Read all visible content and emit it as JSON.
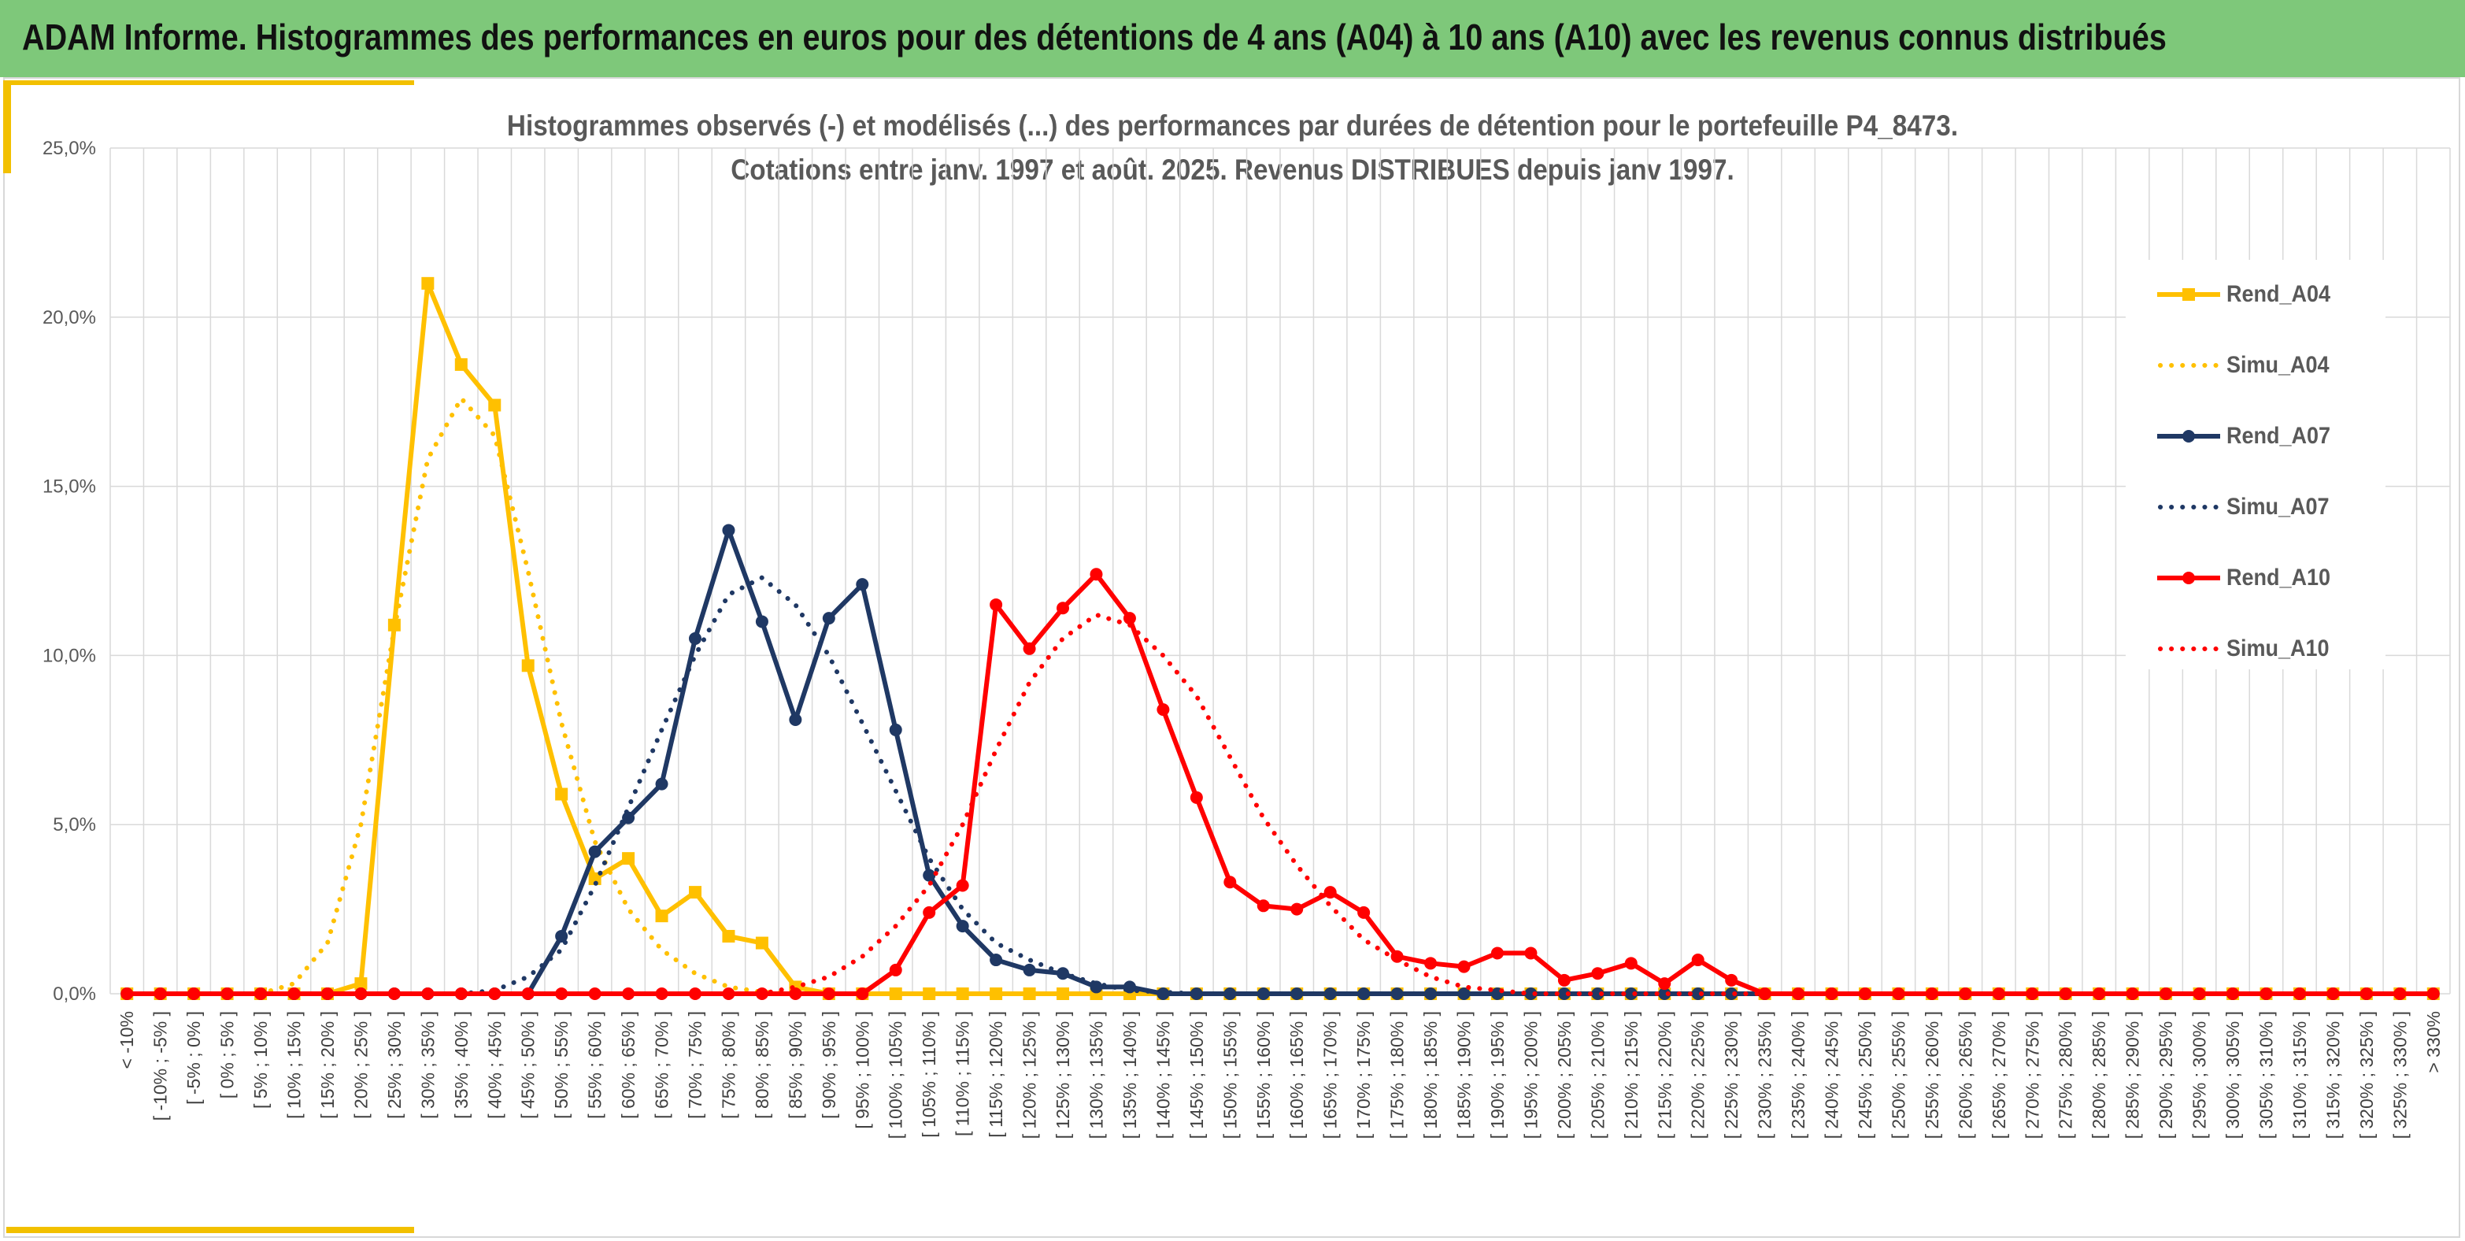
{
  "header": {
    "title": "ADAM Informe. Histogrammes des performances en euros pour des détentions de 4 ans (A04) à 10 ans (A10) avec les revenus connus distribués"
  },
  "colors": {
    "header_bg": "#7ec87a",
    "accent": "#f2c000",
    "A04": "#ffc000",
    "A07": "#1f3864",
    "A10": "#ff0000"
  },
  "chart_data": {
    "type": "line",
    "title_lines": [
      "Histogrammes observés (-) et modélisés (...) des performances par durées de détention pour le portefeuille P4_8473.",
      "Cotations entre janv. 1997 et août. 2025. Revenus DISTRIBUES depuis janv 1997."
    ],
    "ylim": [
      0,
      25
    ],
    "y_ticks": [
      "0,0%",
      "5,0%",
      "10,0%",
      "15,0%",
      "20,0%",
      "25,0%"
    ],
    "grid": true,
    "legend_position": "right",
    "categories": [
      "< -10%",
      "[ -10% ; -5% ]",
      "[ -5% ; 0% ]",
      "[ 0% ; 5% ]",
      "[ 5% ; 10% ]",
      "[ 10% ; 15% ]",
      "[ 15% ; 20% ]",
      "[ 20% ; 25% ]",
      "[ 25% ; 30% ]",
      "[ 30% ; 35% ]",
      "[ 35% ; 40% ]",
      "[ 40% ; 45% ]",
      "[ 45% ; 50% ]",
      "[ 50% ; 55% ]",
      "[ 55% ; 60% ]",
      "[ 60% ; 65% ]",
      "[ 65% ; 70% ]",
      "[ 70% ; 75% ]",
      "[ 75% ; 80% ]",
      "[ 80% ; 85% ]",
      "[ 85% ; 90% ]",
      "[ 90% ; 95% ]",
      "[ 95% ; 100% ]",
      "[ 100% ; 105% ]",
      "[ 105% ; 110% ]",
      "[ 110% ; 115% ]",
      "[ 115% ; 120% ]",
      "[ 120% ; 125% ]",
      "[ 125% ; 130% ]",
      "[ 130% ; 135% ]",
      "[ 135% ; 140% ]",
      "[ 140% ; 145% ]",
      "[ 145% ; 150% ]",
      "[ 150% ; 155% ]",
      "[ 155% ; 160% ]",
      "[ 160% ; 165% ]",
      "[ 165% ; 170% ]",
      "[ 170% ; 175% ]",
      "[ 175% ; 180% ]",
      "[ 180% ; 185% ]",
      "[ 185% ; 190% ]",
      "[ 190% ; 195% ]",
      "[ 195% ; 200% ]",
      "[ 200% ; 205% ]",
      "[ 205% ; 210% ]",
      "[ 210% ; 215% ]",
      "[ 215% ; 220% ]",
      "[ 220% ; 225% ]",
      "[ 225% ; 230% ]",
      "[ 230% ; 235% ]",
      "[ 235% ; 240% ]",
      "[ 240% ; 245% ]",
      "[ 245% ; 250% ]",
      "[ 250% ; 255% ]",
      "[ 255% ; 260% ]",
      "[ 260% ; 265% ]",
      "[ 265% ; 270% ]",
      "[ 270% ; 275% ]",
      "[ 275% ; 280% ]",
      "[ 280% ; 285% ]",
      "[ 285% ; 290% ]",
      "[ 290% ; 295% ]",
      "[ 295% ; 300% ]",
      "[ 300% ; 305% ]",
      "[ 305% ; 310% ]",
      "[ 310% ; 315% ]",
      "[ 315% ; 320% ]",
      "[ 320% ; 325% ]",
      "[ 325% ; 330% ]",
      "> 330%"
    ],
    "series": [
      {
        "name": "Rend_A04",
        "style": "solid",
        "marker": "square",
        "color": "#ffc000",
        "values": [
          0,
          0,
          0,
          0,
          0,
          0,
          0,
          0.3,
          10.9,
          21.0,
          18.6,
          17.4,
          9.7,
          5.9,
          3.4,
          4.0,
          2.3,
          3.0,
          1.7,
          1.5,
          0.2,
          0,
          0,
          0,
          0,
          0,
          0,
          0,
          0,
          0,
          0,
          0,
          0,
          0,
          0,
          0,
          0,
          0,
          0,
          0,
          0,
          0,
          0,
          0,
          0,
          0,
          0,
          0,
          0,
          0,
          0,
          0,
          0,
          0,
          0,
          0,
          0,
          0,
          0,
          0,
          0,
          0,
          0,
          0,
          0,
          0,
          0,
          0,
          0,
          0
        ]
      },
      {
        "name": "Simu_A04",
        "style": "dotted",
        "marker": "none",
        "color": "#ffc000",
        "values": [
          0,
          0,
          0,
          0,
          0,
          0.3,
          1.5,
          5.0,
          10.8,
          15.8,
          17.6,
          16.5,
          12.5,
          8.0,
          4.5,
          2.5,
          1.3,
          0.6,
          0.2,
          0.05,
          0,
          0,
          0,
          0,
          0,
          0,
          0,
          0,
          0,
          0,
          0,
          0,
          0,
          0,
          0,
          0,
          0,
          0,
          0,
          0,
          0,
          0,
          0,
          0,
          0,
          0,
          0,
          0,
          0,
          0,
          0,
          0,
          0,
          0,
          0,
          0,
          0,
          0,
          0,
          0,
          0,
          0,
          0,
          0,
          0,
          0,
          0,
          0,
          0,
          0
        ]
      },
      {
        "name": "Rend_A07",
        "style": "solid",
        "marker": "circle",
        "color": "#1f3864",
        "values": [
          0,
          0,
          0,
          0,
          0,
          0,
          0,
          0,
          0,
          0,
          0,
          0,
          0,
          1.7,
          4.2,
          5.2,
          6.2,
          10.5,
          13.7,
          11.0,
          8.1,
          11.1,
          12.1,
          7.8,
          3.5,
          2.0,
          1.0,
          0.7,
          0.6,
          0.2,
          0.2,
          0,
          0,
          0,
          0,
          0,
          0,
          0,
          0,
          0,
          0,
          0,
          0,
          0,
          0,
          0,
          0,
          0,
          0,
          0,
          0,
          0,
          0,
          0,
          0,
          0,
          0,
          0,
          0,
          0,
          0,
          0,
          0,
          0,
          0,
          0,
          0,
          0,
          0,
          0
        ]
      },
      {
        "name": "Simu_A07",
        "style": "dotted",
        "marker": "none",
        "color": "#1f3864",
        "values": [
          0,
          0,
          0,
          0,
          0,
          0,
          0,
          0,
          0,
          0,
          0,
          0.1,
          0.5,
          1.3,
          3.2,
          5.5,
          7.8,
          10.0,
          11.8,
          12.3,
          11.5,
          10.0,
          8.0,
          6.0,
          4.0,
          2.5,
          1.5,
          1.0,
          0.6,
          0.3,
          0.1,
          0.05,
          0,
          0,
          0,
          0,
          0,
          0,
          0,
          0,
          0,
          0,
          0,
          0,
          0,
          0,
          0,
          0,
          0,
          0,
          0,
          0,
          0,
          0,
          0,
          0,
          0,
          0,
          0,
          0,
          0,
          0,
          0,
          0,
          0,
          0,
          0,
          0,
          0,
          0
        ]
      },
      {
        "name": "Rend_A10",
        "style": "solid",
        "marker": "circle",
        "color": "#ff0000",
        "values": [
          0,
          0,
          0,
          0,
          0,
          0,
          0,
          0,
          0,
          0,
          0,
          0,
          0,
          0,
          0,
          0,
          0,
          0,
          0,
          0,
          0,
          0,
          0,
          0.7,
          2.4,
          3.2,
          11.5,
          10.2,
          11.4,
          12.4,
          11.1,
          8.4,
          5.8,
          3.3,
          2.6,
          2.5,
          3.0,
          2.4,
          1.1,
          0.9,
          0.8,
          1.2,
          1.2,
          0.4,
          0.6,
          0.9,
          0.3,
          1.0,
          0.4,
          0,
          0,
          0,
          0,
          0,
          0,
          0,
          0,
          0,
          0,
          0,
          0,
          0,
          0,
          0,
          0,
          0,
          0,
          0,
          0,
          0
        ]
      },
      {
        "name": "Simu_A10",
        "style": "dotted",
        "marker": "none",
        "color": "#ff0000",
        "values": [
          0,
          0,
          0,
          0,
          0,
          0,
          0,
          0,
          0,
          0,
          0,
          0,
          0,
          0,
          0,
          0,
          0,
          0,
          0,
          0,
          0.2,
          0.5,
          1.1,
          2.0,
          3.2,
          5.0,
          7.2,
          9.2,
          10.5,
          11.2,
          10.9,
          10.0,
          8.8,
          7.0,
          5.2,
          3.8,
          2.6,
          1.6,
          1.0,
          0.5,
          0.2,
          0.1,
          0,
          0,
          0,
          0,
          0,
          0,
          0,
          0,
          0,
          0,
          0,
          0,
          0,
          0,
          0,
          0,
          0,
          0,
          0,
          0,
          0,
          0,
          0,
          0,
          0,
          0,
          0,
          0
        ]
      }
    ]
  }
}
